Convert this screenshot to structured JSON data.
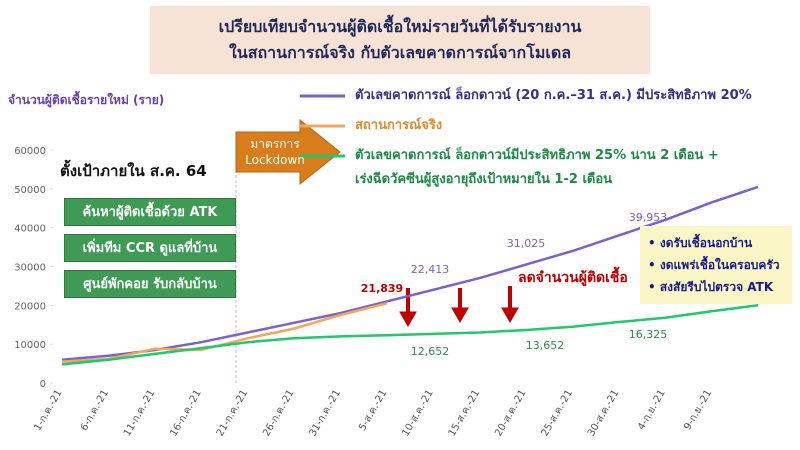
{
  "title": [
    "เปรียบเทียบจำนวนผู้ติดเชื้อใหม่รายวันที่ได้รับรายงาน",
    "ในสถานการณ์จริง กับตัวเลขคาดการณ์จากโมเดล"
  ],
  "chart_data": {
    "type": "line",
    "y_label": "จำนวนผู้ติดเชื้อรายใหม่ (ราย)",
    "categories": [
      "1-ก.ค.-21",
      "6-ก.ค.-21",
      "11-ก.ค.-21",
      "16-ก.ค.-21",
      "21-ก.ค.-21",
      "26-ก.ค.-21",
      "31-ก.ค.-21",
      "5-ส.ค.-21",
      "10-ส.ค.-21",
      "15-ส.ค.-21",
      "20-ส.ค.-21",
      "25-ส.ค.-21",
      "30-ส.ค.-21",
      "4-ก.ย.-21",
      "9-ก.ย.-21",
      null
    ],
    "series": [
      {
        "name": "ตัวเลขคาดการณ์ ล็อกดาวน์ (20 ก.ค.–31 ส.ค.) มีประสิทธิภาพ 20%",
        "color": "#7b62c9",
        "values": [
          6000,
          7000,
          8500,
          10500,
          13000,
          15500,
          18000,
          21000,
          24000,
          27000,
          30500,
          34000,
          38000,
          42000,
          46500,
          50500
        ]
      },
      {
        "name": "สถานการณ์จริง",
        "color": "#f0a860",
        "values": [
          5500,
          6200,
          8800,
          8500,
          11500,
          14000,
          17500,
          20500,
          null,
          null,
          null,
          null,
          null,
          null,
          null,
          null
        ]
      },
      {
        "name": "ตัวเลขคาดการณ์ ล็อกดาวน์มีประสิทธิภาพ 25% นาน 2 เดือน +\nเร่งฉีดวัคซีนผู้สูงอายุถึงเป้าหมายใน 1-2 เดือน",
        "color": "#22c86a",
        "values": [
          4800,
          6000,
          7500,
          9000,
          10500,
          11500,
          12000,
          12300,
          12652,
          13000,
          13652,
          14500,
          15700,
          16800,
          18500,
          20000
        ]
      }
    ],
    "ylim": [
      0,
      60000
    ],
    "yticks": [
      0,
      10000,
      20000,
      30000,
      40000,
      50000,
      60000
    ],
    "annotations": [
      "21,839",
      "22,413",
      "31,025",
      "39,953",
      "12,652",
      "13,652",
      "16,325"
    ]
  },
  "target_heading": "ตั้งเป้าภายใน ส.ค. 64",
  "measures": [
    "ค้นหาผู้ติดเชื้อด้วย ATK",
    "เพิ่มทีม CCR ดูแลที่บ้าน",
    "ศูนย์พักคอย รับกลับบ้าน"
  ],
  "lockdown": [
    "มาตรการ",
    "Lockdown"
  ],
  "reduce_text": "ลดจำนวนผู้ติดเชื้อ",
  "advice": [
    "• งดรับเชื้อนอกบ้าน",
    "• งดแพร่เชื้อในครอบครัว",
    "• สงสัยรีบไปตรวจ ATK"
  ]
}
